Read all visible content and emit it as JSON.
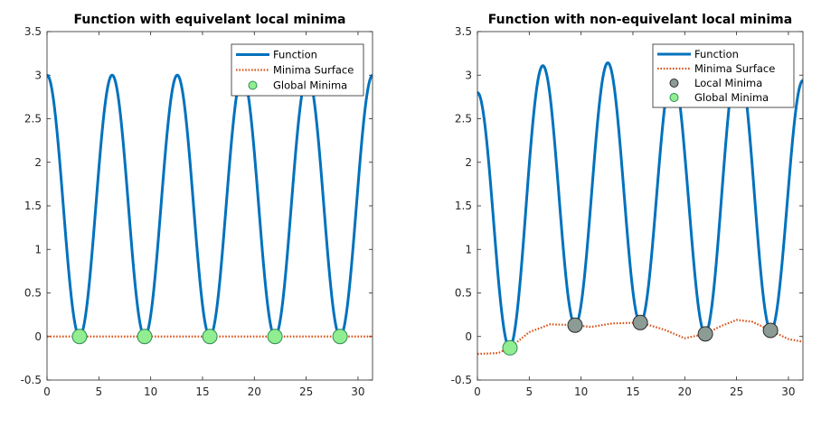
{
  "chart_data": [
    {
      "type": "line",
      "title": "Function with equivelant local minima",
      "xlim": [
        0,
        31.4
      ],
      "ylim": [
        -0.5,
        3.5
      ],
      "xticks": [
        0,
        5,
        10,
        15,
        20,
        25,
        30
      ],
      "yticks": [
        -0.5,
        0,
        0.5,
        1,
        1.5,
        2,
        2.5,
        3,
        3.5
      ],
      "xtick_labels": [
        "0",
        "5",
        "10",
        "15",
        "20",
        "25",
        "30"
      ],
      "ytick_labels": [
        "-0.5",
        "0",
        "0.5",
        "1",
        "1.5",
        "2",
        "2.5",
        "3",
        "3.5"
      ],
      "grid": false,
      "legend_position": "top-right",
      "legend": [
        "Function",
        "Minima Surface",
        "Global Minima"
      ],
      "series": [
        {
          "name": "Function",
          "style": "solid",
          "color": "#0072BD",
          "x_start": 0,
          "x_end": 31.4,
          "num_points": 600,
          "baseline": 0,
          "amplitude": 3,
          "period": 6.2832,
          "perturbation": []
        },
        {
          "name": "Minima Surface",
          "style": "dotted",
          "color": "#D95319",
          "x": [
            0,
            31.4
          ],
          "y": [
            0,
            0
          ]
        },
        {
          "name": "Global Minima",
          "type": "scatter",
          "fill": "#90EE90",
          "edge": "#2E8B57",
          "x": [
            3.14,
            9.42,
            15.71,
            21.99,
            28.27
          ],
          "y": [
            0,
            0,
            0,
            0,
            0
          ]
        }
      ]
    },
    {
      "type": "line",
      "title": "Function with non-equivelant local minima",
      "xlim": [
        0,
        31.4
      ],
      "ylim": [
        -0.5,
        3.5
      ],
      "xticks": [
        0,
        5,
        10,
        15,
        20,
        25,
        30
      ],
      "yticks": [
        -0.5,
        0,
        0.5,
        1,
        1.5,
        2,
        2.5,
        3,
        3.5
      ],
      "xtick_labels": [
        "0",
        "5",
        "10",
        "15",
        "20",
        "25",
        "30"
      ],
      "ytick_labels": [
        "-0.5",
        "0",
        "0.5",
        "1",
        "1.5",
        "2",
        "2.5",
        "3",
        "3.5"
      ],
      "grid": false,
      "legend_position": "top-right",
      "legend": [
        "Function",
        "Minima Surface",
        "Local Minima",
        "Global Minima"
      ],
      "series": [
        {
          "name": "Function",
          "style": "solid",
          "color": "#0072BD",
          "x_start": 0,
          "x_end": 31.4,
          "num_points": 600,
          "baseline": 0,
          "amplitude": 3,
          "period": 6.2832,
          "perturbation": [
            [
              0,
              -0.2
            ],
            [
              2,
              -0.19
            ],
            [
              3.14,
              -0.13
            ],
            [
              5,
              0.05
            ],
            [
              7,
              0.14
            ],
            [
              9.42,
              0.13
            ],
            [
              11,
              0.11
            ],
            [
              13,
              0.15
            ],
            [
              15.71,
              0.16
            ],
            [
              18,
              0.08
            ],
            [
              20,
              -0.02
            ],
            [
              21.99,
              0.03
            ],
            [
              23.5,
              0.12
            ],
            [
              25,
              0.19
            ],
            [
              26.5,
              0.17
            ],
            [
              28.27,
              0.07
            ],
            [
              30,
              -0.03
            ],
            [
              31.4,
              -0.06
            ]
          ]
        },
        {
          "name": "Minima Surface",
          "style": "dotted",
          "color": "#D95319",
          "x": [
            0,
            2,
            3.14,
            5,
            7,
            9.42,
            11,
            13,
            15.71,
            18,
            20,
            21.99,
            23.5,
            25,
            26.5,
            28.27,
            30,
            31.4
          ],
          "y": [
            -0.2,
            -0.19,
            -0.13,
            0.05,
            0.14,
            0.13,
            0.11,
            0.15,
            0.16,
            0.08,
            -0.02,
            0.03,
            0.12,
            0.19,
            0.17,
            0.07,
            -0.03,
            -0.06
          ]
        },
        {
          "name": "Local Minima",
          "type": "scatter",
          "fill": "#8C9C94",
          "edge": "#2B2B2B",
          "x": [
            9.42,
            15.71,
            21.99,
            28.27
          ],
          "y": [
            0.13,
            0.16,
            0.03,
            0.07
          ]
        },
        {
          "name": "Global Minima",
          "type": "scatter",
          "fill": "#90EE90",
          "edge": "#2E8B57",
          "x": [
            3.14
          ],
          "y": [
            -0.13
          ]
        }
      ]
    }
  ]
}
